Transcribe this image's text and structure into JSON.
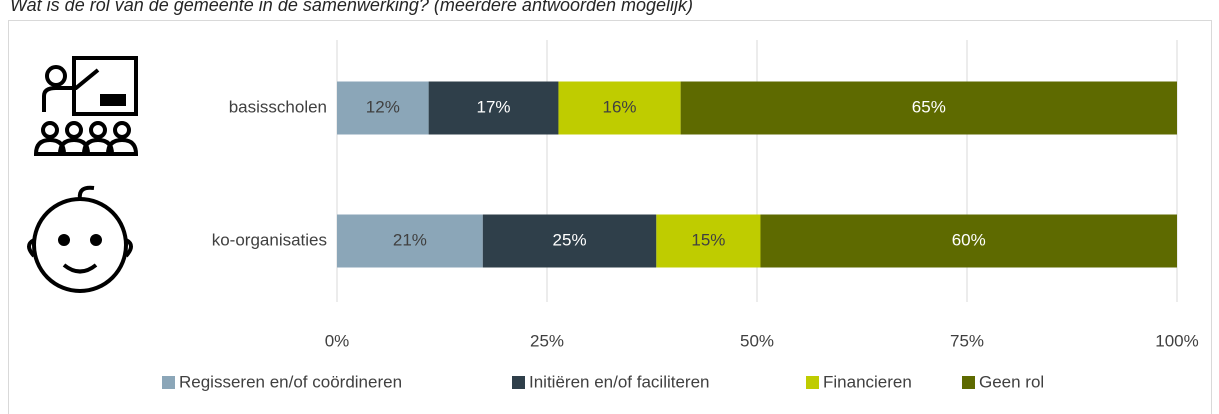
{
  "chart_data": {
    "type": "bar",
    "orientation": "horizontal",
    "stack": "percent",
    "title": "Wat is de rol van de gemeente in de samenwerking? (meerdere antwoorden mogelijk)",
    "categories": [
      "basisscholen",
      "ko-organisaties"
    ],
    "series": [
      {
        "name": "Regisseren en/of coördineren",
        "color": "#8ba6b8",
        "label_color": "#404040",
        "values": [
          12,
          21
        ],
        "value_labels": [
          "12%",
          "21%"
        ]
      },
      {
        "name": "Initiëren en/of faciliteren",
        "color": "#2f3f4a",
        "label_color": "#ffffff",
        "values": [
          17,
          25
        ],
        "value_labels": [
          "17%",
          "25%"
        ]
      },
      {
        "name": "Financieren",
        "color": "#bfcc00",
        "label_color": "#404040",
        "values": [
          16,
          15
        ],
        "value_labels": [
          "16%",
          "15%"
        ]
      },
      {
        "name": "Geen rol",
        "color": "#5e6a00",
        "label_color": "#ffffff",
        "values": [
          65,
          60
        ],
        "value_labels": [
          "65%",
          "60%"
        ]
      }
    ],
    "xlim": [
      0,
      100
    ],
    "xticks": [
      {
        "value": 0,
        "label": "0%"
      },
      {
        "value": 25,
        "label": "25%"
      },
      {
        "value": 50,
        "label": "50%"
      },
      {
        "value": 75,
        "label": "75%"
      },
      {
        "value": 100,
        "label": "100%"
      }
    ],
    "grid": true,
    "legend": "bottom"
  }
}
